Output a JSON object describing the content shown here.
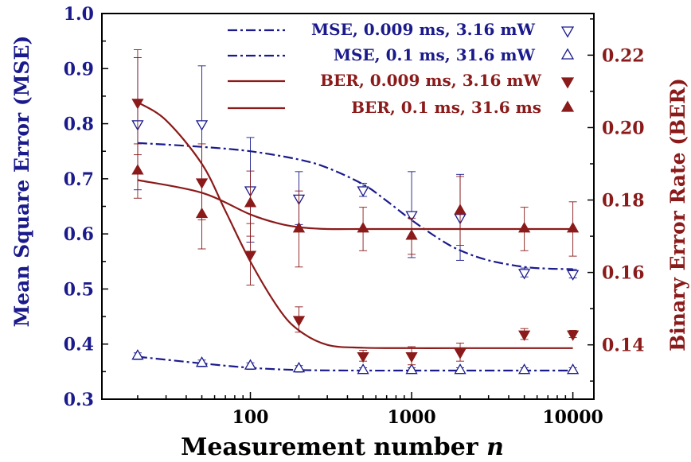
{
  "chart_data": {
    "type": "scatter",
    "title": "",
    "xlabel": "Measurement number",
    "xlabel_var": "n",
    "ylabel_left": "Mean Square Error (MSE)",
    "ylabel_right": "Binary Error Rate (BER)",
    "xscale": "log",
    "xlim": [
      12,
      13500
    ],
    "ylim_left": [
      0.3,
      1.0
    ],
    "ylim_right": [
      0.125,
      0.2315
    ],
    "x_ticks": [
      100,
      1000,
      10000
    ],
    "x_tick_labels": [
      "100",
      "1000",
      "10000"
    ],
    "y_left_ticks": [
      0.3,
      0.4,
      0.5,
      0.6,
      0.7,
      0.8,
      0.9,
      1.0
    ],
    "y_left_tick_labels": [
      "0.3",
      "0.4",
      "0.5",
      "0.6",
      "0.7",
      "0.8",
      "0.9",
      "1.0"
    ],
    "y_right_ticks": [
      0.14,
      0.16,
      0.18,
      0.2,
      0.22
    ],
    "y_right_tick_labels": [
      "0.14",
      "0.16",
      "0.18",
      "0.20",
      "0.22"
    ],
    "grid": false,
    "legend_position": "top-right",
    "colors": {
      "mse": "#1a1a8c",
      "ber": "#8b1a1a"
    },
    "series": [
      {
        "name": "MSE, 0.009 ms, 3.16 mW",
        "axis": "left",
        "marker": "triangle-down-open",
        "line": "dashdot",
        "x": [
          20,
          50,
          100,
          200,
          500,
          1000,
          2000,
          5000,
          10000
        ],
        "y": [
          0.8,
          0.8,
          0.68,
          0.665,
          0.68,
          0.635,
          0.63,
          0.53,
          0.528
        ],
        "err": [
          0.12,
          0.105,
          0.095,
          0.048,
          0.012,
          0.078,
          0.078,
          0.008,
          0.008
        ],
        "fit_x": [
          20,
          50,
          100,
          200,
          300,
          500,
          700,
          1000,
          1500,
          2000,
          3000,
          5000,
          7000,
          10000
        ],
        "fit_y": [
          0.765,
          0.758,
          0.75,
          0.735,
          0.72,
          0.69,
          0.66,
          0.625,
          0.59,
          0.57,
          0.552,
          0.54,
          0.537,
          0.536
        ]
      },
      {
        "name": "MSE, 0.1 ms, 31.6 mW",
        "axis": "left",
        "marker": "triangle-up-open",
        "line": "dashdot",
        "x": [
          20,
          50,
          100,
          200,
          500,
          1000,
          2000,
          5000,
          10000
        ],
        "y": [
          0.378,
          0.365,
          0.36,
          0.355,
          0.352,
          0.352,
          0.352,
          0.352,
          0.352
        ],
        "err": [
          0.006,
          0.006,
          0.006,
          0.006,
          0.005,
          0.005,
          0.005,
          0.005,
          0.005
        ],
        "fit_x": [
          20,
          50,
          100,
          200,
          500,
          1000,
          2000,
          5000,
          10000
        ],
        "fit_y": [
          0.377,
          0.365,
          0.357,
          0.353,
          0.352,
          0.352,
          0.352,
          0.352,
          0.352
        ]
      },
      {
        "name": "BER, 0.009 ms, 3.16 mW",
        "axis": "right",
        "marker": "triangle-down-filled",
        "line": "solid",
        "x": [
          20,
          50,
          100,
          200,
          500,
          1000,
          2000,
          5000,
          10000
        ],
        "y": [
          0.207,
          0.185,
          0.165,
          0.147,
          0.137,
          0.137,
          0.138,
          0.143,
          0.143
        ],
        "err": [
          0.0145,
          0.0105,
          0.0085,
          0.0035,
          0.0015,
          0.0025,
          0.0025,
          0.0015,
          0.001
        ],
        "fit_x": [
          20,
          30,
          50,
          70,
          100,
          150,
          200,
          300,
          500,
          1000,
          2000,
          5000,
          10000
        ],
        "fit_y": [
          0.207,
          0.202,
          0.19,
          0.177,
          0.163,
          0.15,
          0.144,
          0.14,
          0.1392,
          0.1391,
          0.1391,
          0.1391,
          0.1391
        ]
      },
      {
        "name": "BER, 0.1 ms, 31.6 ms",
        "axis": "right",
        "marker": "triangle-up-filled",
        "line": "solid",
        "x": [
          20,
          50,
          100,
          200,
          500,
          1000,
          2000,
          5000,
          10000
        ],
        "y": [
          0.188,
          0.176,
          0.179,
          0.172,
          0.172,
          0.17,
          0.177,
          0.172,
          0.172
        ],
        "err": [
          0.0075,
          0.0095,
          0.009,
          0.0105,
          0.006,
          0.005,
          0.0095,
          0.006,
          0.0075
        ],
        "fit_x": [
          20,
          50,
          100,
          150,
          200,
          300,
          500,
          1000,
          2000,
          5000,
          10000
        ],
        "fit_y": [
          0.1855,
          0.182,
          0.176,
          0.1735,
          0.1725,
          0.172,
          0.172,
          0.172,
          0.172,
          0.172,
          0.172
        ]
      }
    ]
  }
}
